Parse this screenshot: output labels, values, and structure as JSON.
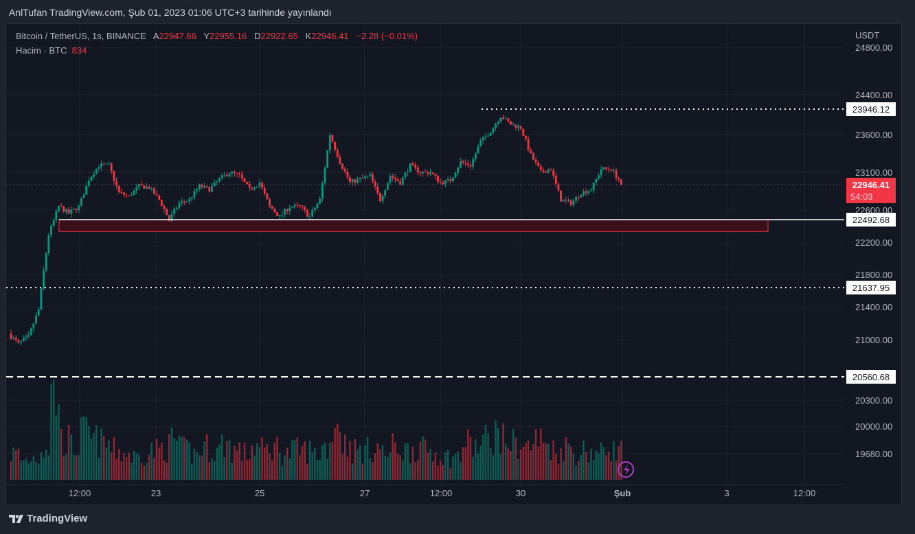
{
  "header": {
    "title": "AnlTufan TradingView.com, Şub 01, 2023 01:06 UTC+3 tarihinde yayınlandı"
  },
  "legend": {
    "symbol": "Bitcoin / TetherUS, 1s, BINANCE",
    "o_label": "A",
    "o": "22947.66",
    "h_label": "Y",
    "h": "22955.16",
    "l_label": "D",
    "l": "22922.65",
    "c_label": "K",
    "c": "22946.41",
    "change": "−2.28 (−0.01%)",
    "volume_label": "Hacim · BTC",
    "volume": "834"
  },
  "footer": {
    "brand": "TradingView"
  },
  "colors": {
    "up": "#089981",
    "down": "#f23645",
    "bg": "#131722",
    "zone": "#f23645"
  },
  "chart_data": {
    "type": "candlestick",
    "currency": "USDT",
    "y_ticks": [
      "24800.00",
      "24400.00",
      "23600.00",
      "23100.00",
      "22600.00",
      "22200.00",
      "21800.00",
      "21400.00",
      "21000.00",
      "20300.00",
      "20000.00",
      "19680.00"
    ],
    "x_ticks": [
      "12:00",
      "23",
      "25",
      "27",
      "12:00",
      "30",
      "Şub",
      "3",
      "12:00"
    ],
    "last_price": {
      "value": "22946.41",
      "countdown": "54:03"
    },
    "levels": [
      {
        "value": "23946.12",
        "style": "dotted"
      },
      {
        "value": "22492.68",
        "style": "solid"
      },
      {
        "value": "21637.95",
        "style": "dotted"
      },
      {
        "value": "20560.68",
        "style": "dashed"
      }
    ],
    "zone": {
      "top": 22492.68,
      "bottom": 22340
    },
    "path_closes": [
      21075,
      20951,
      21033,
      21367,
      22306,
      22647,
      22561,
      22647,
      23014,
      23191,
      23191,
      22834,
      22787,
      22927,
      22909,
      22740,
      22484,
      22694,
      22740,
      22927,
      22881,
      23014,
      23100,
      23057,
      22881,
      22972,
      22647,
      22523,
      22647,
      22647,
      22523,
      22740,
      23600,
      23236,
      22972,
      23014,
      23057,
      22740,
      23057,
      22972,
      23191,
      23100,
      23100,
      22972,
      23000,
      23236,
      23191,
      23509,
      23647,
      23852,
      23740,
      23693,
      23327,
      23100,
      23145,
      22740,
      22694,
      22834,
      22881,
      23145,
      23145,
      22972
    ],
    "volume_path": [
      40,
      30,
      35,
      50,
      130,
      60,
      50,
      70,
      60,
      55,
      45,
      40,
      35,
      40,
      45,
      50,
      60,
      45,
      40,
      50,
      45,
      55,
      45,
      40,
      50,
      45,
      50,
      40,
      45,
      45,
      40,
      50,
      90,
      55,
      45,
      45,
      50,
      40,
      50,
      45,
      50,
      45,
      40,
      35,
      35,
      55,
      50,
      60,
      70,
      60,
      55,
      50,
      60,
      55,
      45,
      50,
      40,
      45,
      40,
      50,
      45,
      40
    ]
  }
}
